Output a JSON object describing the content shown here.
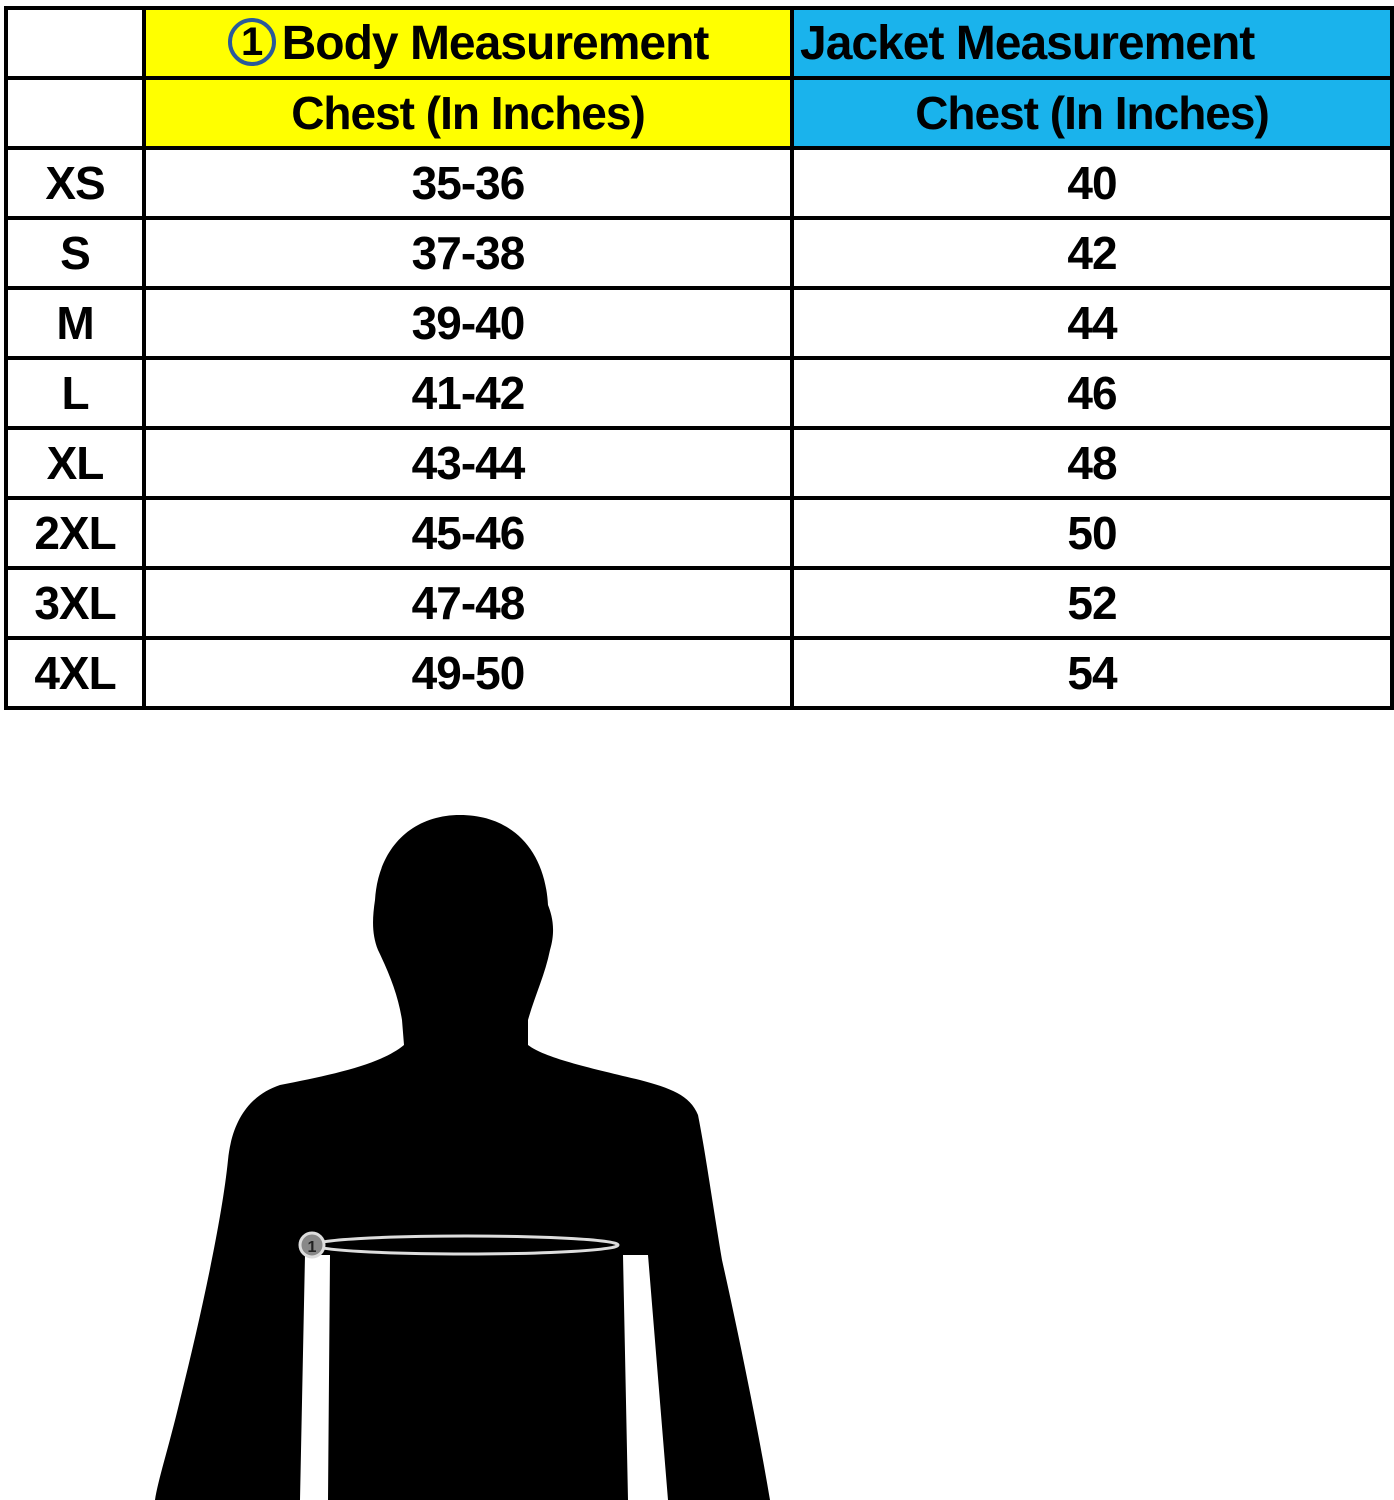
{
  "header": {
    "badge": "1",
    "body_title": "Body Measurement",
    "jacket_title": "Jacket Measurement",
    "body_sub": "Chest (In Inches)",
    "jacket_sub": "Chest (In Inches)"
  },
  "colors": {
    "body_header": "#ffff00",
    "jacket_header": "#1ab3ec",
    "badge_ring": "#2a5a9a"
  },
  "rows": [
    {
      "size": "XS",
      "body": "35-36",
      "jacket": "40"
    },
    {
      "size": "S",
      "body": "37-38",
      "jacket": "42"
    },
    {
      "size": "M",
      "body": "39-40",
      "jacket": "44"
    },
    {
      "size": "L",
      "body": "41-42",
      "jacket": "46"
    },
    {
      "size": "XL",
      "body": "43-44",
      "jacket": "48"
    },
    {
      "size": "2XL",
      "body": "45-46",
      "jacket": "50"
    },
    {
      "size": "3XL",
      "body": "47-48",
      "jacket": "52"
    },
    {
      "size": "4XL",
      "body": "49-50",
      "jacket": "54"
    }
  ],
  "figure": {
    "marker": "1",
    "icon": "body-silhouette-chest-measure"
  }
}
